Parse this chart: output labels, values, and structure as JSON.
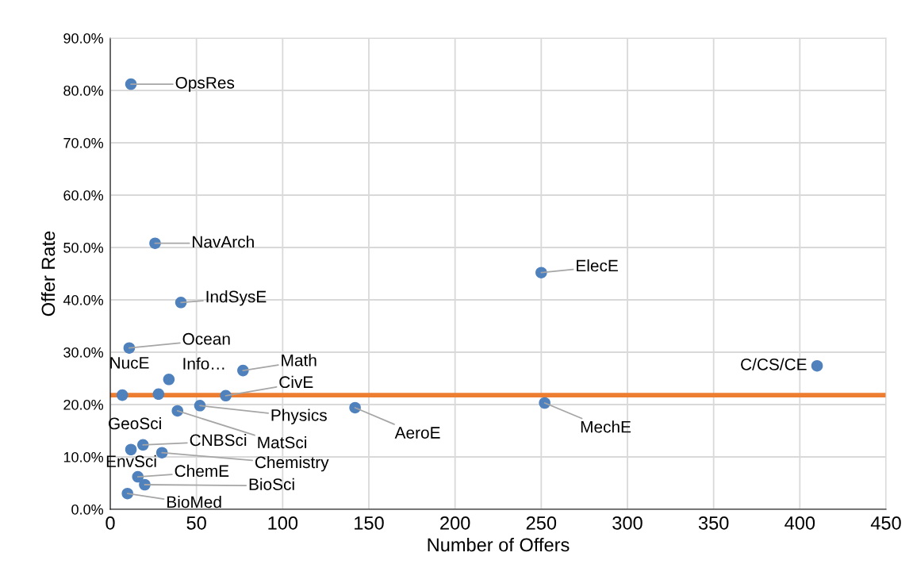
{
  "chart_data": {
    "type": "scatter",
    "xlabel": "Number of Offers",
    "ylabel": "Offer Rate",
    "xlim": [
      0,
      450
    ],
    "xticks": [
      0,
      50,
      100,
      150,
      200,
      250,
      300,
      350,
      400,
      450
    ],
    "ylim": [
      0,
      90
    ],
    "yticks": [
      {
        "value": 0,
        "label": "0.0%"
      },
      {
        "value": 10,
        "label": "10.0%"
      },
      {
        "value": 20,
        "label": "20.0%"
      },
      {
        "value": 30,
        "label": "30.0%"
      },
      {
        "value": 40,
        "label": "40.0%"
      },
      {
        "value": 50,
        "label": "50.0%"
      },
      {
        "value": 60,
        "label": "60.0%"
      },
      {
        "value": 70,
        "label": "70.0%"
      },
      {
        "value": 80,
        "label": "80.0%"
      },
      {
        "value": 90,
        "label": "90.0%"
      }
    ],
    "grid": true,
    "marker": "circle",
    "series": [
      {
        "color": "#4f81bd",
        "x": [
          12,
          26,
          41,
          11,
          34,
          77,
          7,
          28,
          67,
          52,
          39,
          19,
          12,
          30,
          16,
          20,
          10,
          142,
          250,
          252,
          410
        ],
        "values": [
          81.2,
          50.8,
          39.5,
          30.8,
          24.8,
          26.5,
          21.8,
          22.0,
          21.7,
          19.8,
          18.8,
          12.3,
          11.4,
          10.8,
          6.2,
          4.7,
          3.0,
          19.4,
          45.2,
          20.3,
          27.4
        ]
      }
    ],
    "annotations": [
      {
        "text": "OpsRes",
        "x": 12,
        "y": 81.2
      },
      {
        "text": "NavArch",
        "x": 26,
        "y": 50.8
      },
      {
        "text": "IndSysE",
        "x": 41,
        "y": 39.5
      },
      {
        "text": "Ocean",
        "x": 11,
        "y": 30.8
      },
      {
        "text": "Info…",
        "x": 34,
        "y": 24.8
      },
      {
        "text": "Math",
        "x": 77,
        "y": 26.5
      },
      {
        "text": "NucE",
        "x": 7,
        "y": 21.8
      },
      {
        "text": "GeoSci",
        "x": 28,
        "y": 22.0
      },
      {
        "text": "CivE",
        "x": 67,
        "y": 21.7
      },
      {
        "text": "Physics",
        "x": 52,
        "y": 19.8
      },
      {
        "text": "MatSci",
        "x": 39,
        "y": 18.8
      },
      {
        "text": "CNBSci",
        "x": 19,
        "y": 12.3
      },
      {
        "text": "EnvSci",
        "x": 12,
        "y": 11.4
      },
      {
        "text": "Chemistry",
        "x": 30,
        "y": 10.8
      },
      {
        "text": "ChemE",
        "x": 16,
        "y": 6.2
      },
      {
        "text": "BioSci",
        "x": 20,
        "y": 4.7
      },
      {
        "text": "BioMed",
        "x": 10,
        "y": 3.0
      },
      {
        "text": "AeroE",
        "x": 142,
        "y": 19.4
      },
      {
        "text": "ElecE",
        "x": 250,
        "y": 45.2
      },
      {
        "text": "MechE",
        "x": 252,
        "y": 20.3
      },
      {
        "text": "C/CS/CE",
        "x": 410,
        "y": 27.4
      }
    ],
    "ref_lines": [
      {
        "axis": "y",
        "value": 21.8,
        "color": "#ed7d31"
      }
    ]
  }
}
